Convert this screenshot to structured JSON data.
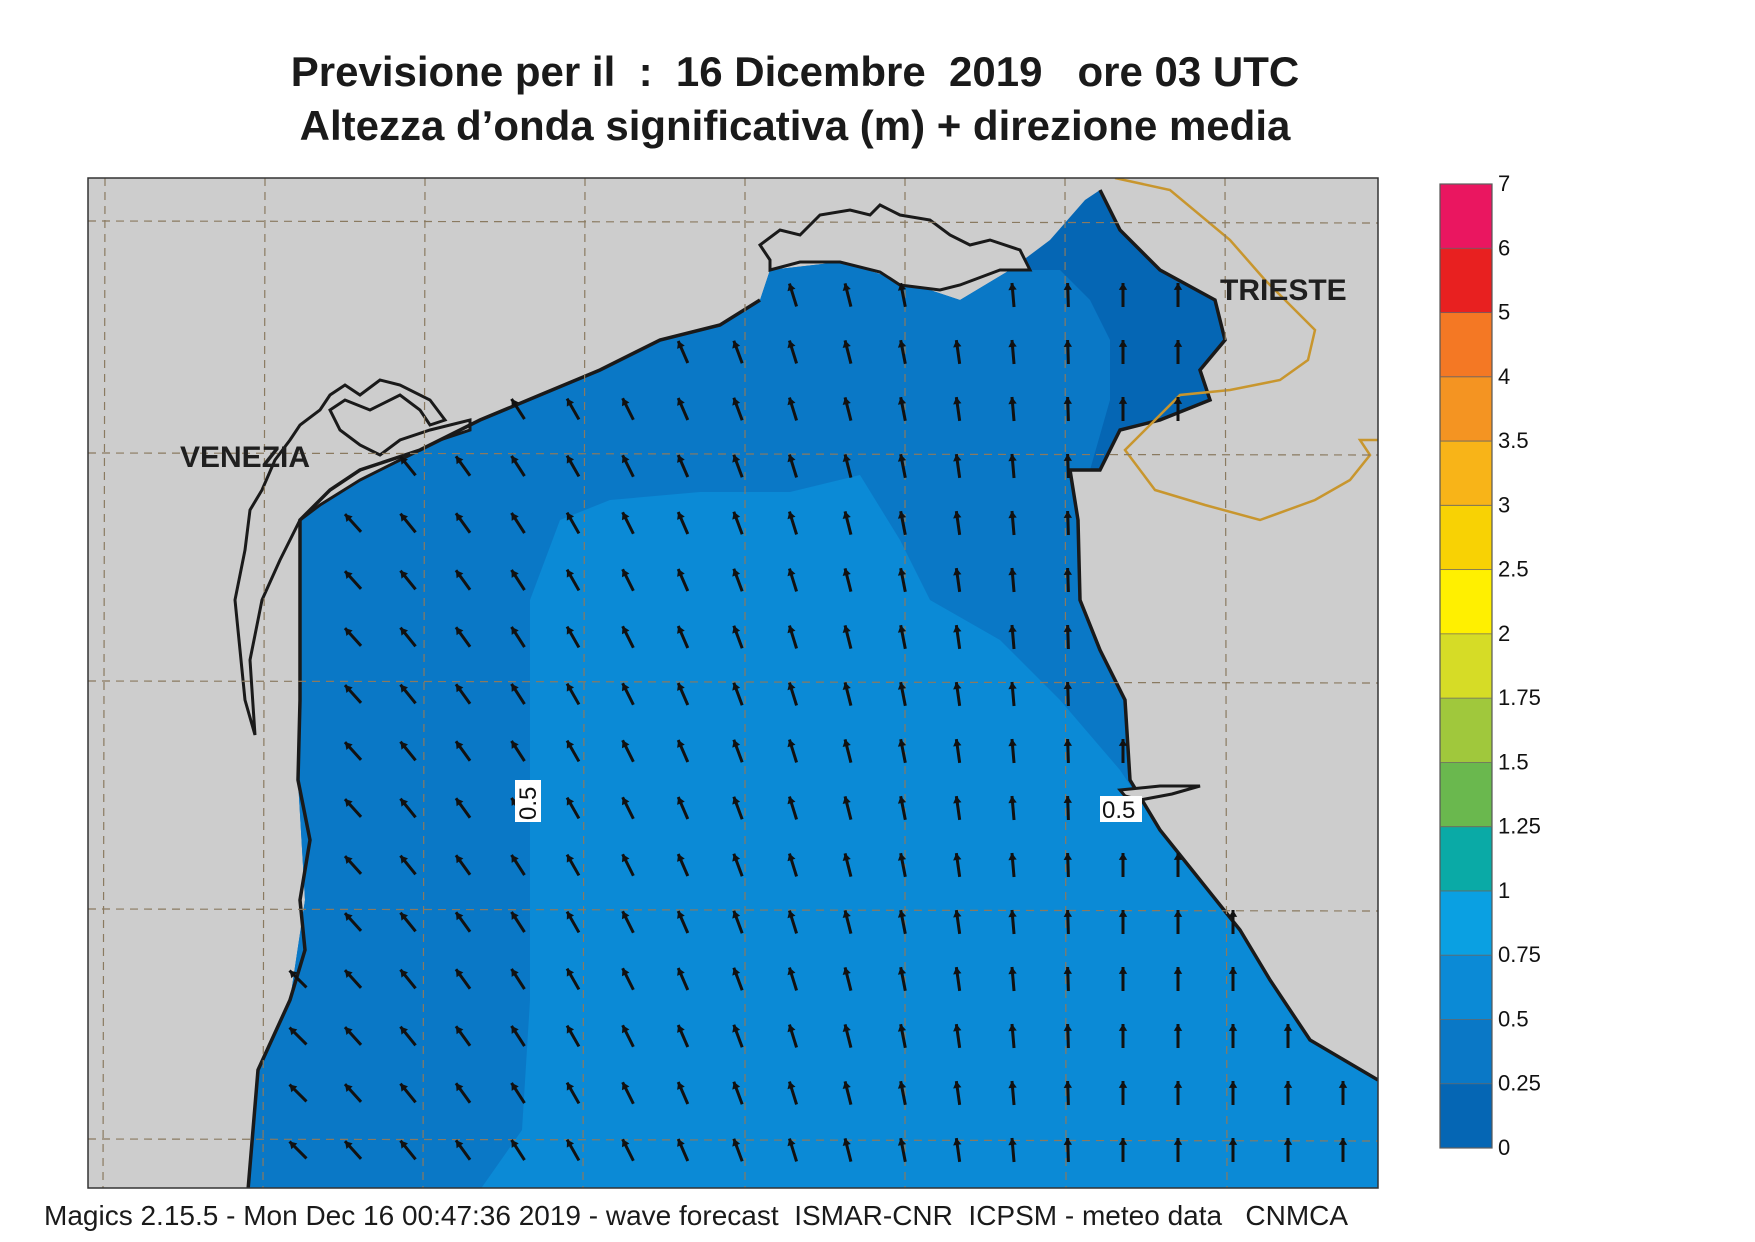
{
  "title": {
    "line1": "Previsione per il  :  16 Dicembre  2019   ore 03 UTC",
    "line2": "Altezza d’onda significativa (m) + direzione media"
  },
  "cities": [
    "VENEZIA",
    "TRIESTE"
  ],
  "contour_labels": [
    "0.5",
    "0.5"
  ],
  "legend": {
    "levels": [
      "0",
      "0.25",
      "0.5",
      "0.75",
      "1",
      "1.25",
      "1.5",
      "1.75",
      "2",
      "2.5",
      "3",
      "3.5",
      "4",
      "5",
      "6",
      "7"
    ],
    "colors": [
      "#0566b4",
      "#0a78c6",
      "#0b8ad6",
      "#0aa0e2",
      "#0aaaa6",
      "#6ab84e",
      "#a0c83c",
      "#d6dc26",
      "#fff000",
      "#f8d204",
      "#f8b418",
      "#f49422",
      "#f47824",
      "#e82020",
      "#ea1660"
    ]
  },
  "map": {
    "land_color": "#cdcdcd",
    "sea_colors": {
      "low": "#0566b4",
      "mid": "#0a78c6",
      "high": "#0b8ad6"
    },
    "border_color": "#c8962e",
    "wave_direction": "north-northwest"
  },
  "footer": "Magics 2.15.5 - Mon Dec 16 00:47:36 2019 - wave forecast  ISMAR-CNR  ICPSM - meteo data   CNMCA"
}
